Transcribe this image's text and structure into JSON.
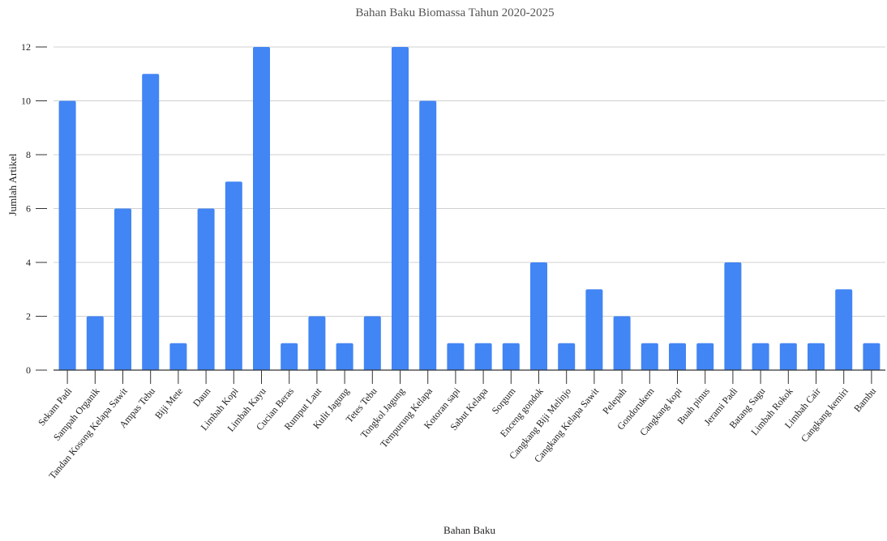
{
  "chart_data": {
    "type": "bar",
    "title": "Bahan Baku Biomassa Tahun 2020-2025",
    "xlabel": "Bahan Baku",
    "ylabel": "Jumlah Artikel",
    "ylim": [
      0,
      12
    ],
    "yticks": [
      0,
      2,
      4,
      6,
      8,
      10,
      12
    ],
    "grid": true,
    "bar_color": "#4285F4",
    "categories": [
      "Sekam Padi",
      "Sampah Organik",
      "Tandan Kosong Kelapa Sawit",
      "Ampas Tebu",
      "Biji Mete",
      "Daun",
      "Limbah Kopi",
      "Limbah Kayu",
      "Cucian Beras",
      "Rumput Laut",
      "Kulit Jagung",
      "Tetes Tebu",
      "Tongkol Jagung",
      "Tempurung Kelapa",
      "Kotoran sapi",
      "Sabut Kelapa",
      "Sorgum",
      "Enceng gondok",
      "Cangkang Biji Melinjo",
      "Cangkang Kelapa Sawit",
      "Pelepah",
      "Gondorukem",
      "Cangkang kopi",
      "Buah pinus",
      "Jerami Padi",
      "Batang Sagu",
      "Limbah Rokok",
      "Limbah Cair",
      "Cangkang kemiri",
      "Bambu"
    ],
    "values": [
      10,
      2,
      6,
      11,
      1,
      6,
      7,
      12,
      1,
      2,
      1,
      2,
      12,
      10,
      1,
      1,
      1,
      4,
      1,
      3,
      2,
      1,
      1,
      1,
      4,
      1,
      1,
      1,
      3,
      1
    ]
  }
}
